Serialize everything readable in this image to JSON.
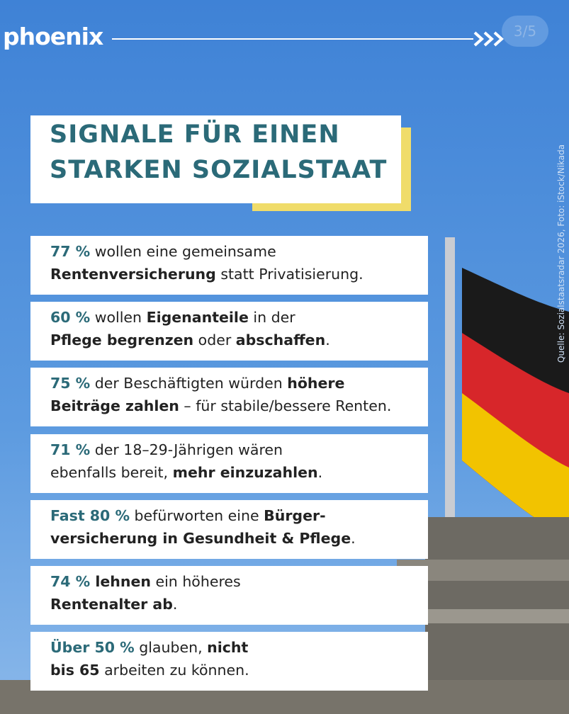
{
  "header": {
    "logo": "phoenix",
    "page": "3/5"
  },
  "title": {
    "lines": [
      "SIGNALE FÜR EINEN",
      "STARKEN SOZIALSTAAT"
    ]
  },
  "credit": "Quelle: Sozialstaatsradar 2026, Foto: iStock/Nikada",
  "items": [
    {
      "lines": [
        [
          {
            "text": "77 %",
            "style": "highlight"
          },
          {
            "text": " wollen eine gemeinsame",
            "style": "normal"
          }
        ],
        [
          {
            "text": "Rentenversicherung",
            "style": "bold"
          },
          {
            "text": " statt Privatisierung.",
            "style": "normal"
          }
        ]
      ]
    },
    {
      "lines": [
        [
          {
            "text": "60 %",
            "style": "highlight"
          },
          {
            "text": " wollen ",
            "style": "normal"
          },
          {
            "text": "Eigenanteile",
            "style": "bold"
          },
          {
            "text": " in der",
            "style": "normal"
          }
        ],
        [
          {
            "text": "Pflege begrenzen",
            "style": "bold"
          },
          {
            "text": " oder ",
            "style": "normal"
          },
          {
            "text": "abschaffen",
            "style": "bold"
          },
          {
            "text": ".",
            "style": "normal"
          }
        ]
      ]
    },
    {
      "lines": [
        [
          {
            "text": "75 %",
            "style": "highlight"
          },
          {
            "text": " der Beschäftigten würden ",
            "style": "normal"
          },
          {
            "text": "höhere",
            "style": "bold"
          }
        ],
        [
          {
            "text": "Beiträge zahlen",
            "style": "bold"
          },
          {
            "text": " – für stabile/bessere Renten.",
            "style": "normal"
          }
        ]
      ]
    },
    {
      "lines": [
        [
          {
            "text": "71 %",
            "style": "highlight"
          },
          {
            "text": " der 18–29-Jährigen wären",
            "style": "normal"
          }
        ],
        [
          {
            "text": "ebenfalls bereit, ",
            "style": "normal"
          },
          {
            "text": "mehr einzuzahlen",
            "style": "bold"
          },
          {
            "text": ".",
            "style": "normal"
          }
        ]
      ]
    },
    {
      "lines": [
        [
          {
            "text": "Fast 80 %",
            "style": "highlight"
          },
          {
            "text": " befürworten eine ",
            "style": "normal"
          },
          {
            "text": "Bürger-",
            "style": "bold"
          }
        ],
        [
          {
            "text": "versicherung in Gesundheit & Pflege",
            "style": "bold"
          },
          {
            "text": ".",
            "style": "normal"
          }
        ]
      ]
    },
    {
      "lines": [
        [
          {
            "text": "74 %",
            "style": "highlight"
          },
          {
            "text": " lehnen",
            "style": "bold"
          },
          {
            "text": " ein höheres",
            "style": "normal"
          }
        ],
        [
          {
            "text": "Rentenalter ab",
            "style": "bold"
          },
          {
            "text": ".",
            "style": "normal"
          }
        ]
      ]
    },
    {
      "lines": [
        [
          {
            "text": "Über 50 %",
            "style": "highlight"
          },
          {
            "text": " glauben, ",
            "style": "normal"
          },
          {
            "text": "nicht",
            "style": "bold"
          }
        ],
        [
          {
            "text": "bis 65",
            "style": "bold"
          },
          {
            "text": " arbeiten zu können.",
            "style": "normal"
          }
        ]
      ]
    }
  ]
}
